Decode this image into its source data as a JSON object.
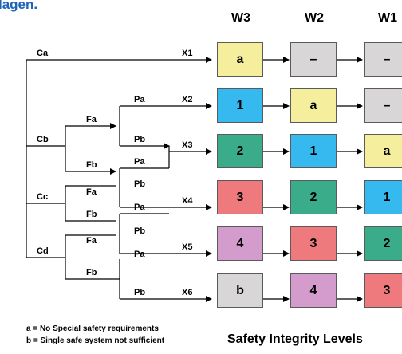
{
  "title": "lagen.",
  "columns": [
    "W3",
    "W2",
    "W1"
  ],
  "branch_labels": {
    "c": [
      "Ca",
      "Cb",
      "Cc",
      "Cd"
    ],
    "f": [
      "Fa",
      "Fb",
      "Fa",
      "Fb",
      "Fa",
      "Fb"
    ],
    "p": [
      "Pa",
      "Pb",
      "Pa",
      "Pb",
      "Pa",
      "Pb",
      "Pa",
      "Pb"
    ],
    "x": [
      "X1",
      "X2",
      "X3",
      "X4",
      "X5",
      "X6"
    ]
  },
  "levels": {
    "W3": [
      "a",
      "1",
      "2",
      "3",
      "4",
      "b"
    ],
    "W2": [
      "–",
      "a",
      "1",
      "2",
      "3",
      "4"
    ],
    "W1": [
      "–",
      "–",
      "a",
      "1",
      "2",
      "3"
    ]
  },
  "colors": {
    "a": "#f5ee9c",
    "1": "#36b9ee",
    "2": "#3aac8a",
    "3": "#ef7a7e",
    "4": "#d49ccc",
    "b": "#d8d6d6",
    "–": "#d8d6d6",
    "title": "#1e63b8"
  },
  "legend": {
    "line1": "a = No Special safety requirements",
    "line2": "b = Single safe system not sufficient"
  },
  "caption": "Safety Integrity Levels"
}
